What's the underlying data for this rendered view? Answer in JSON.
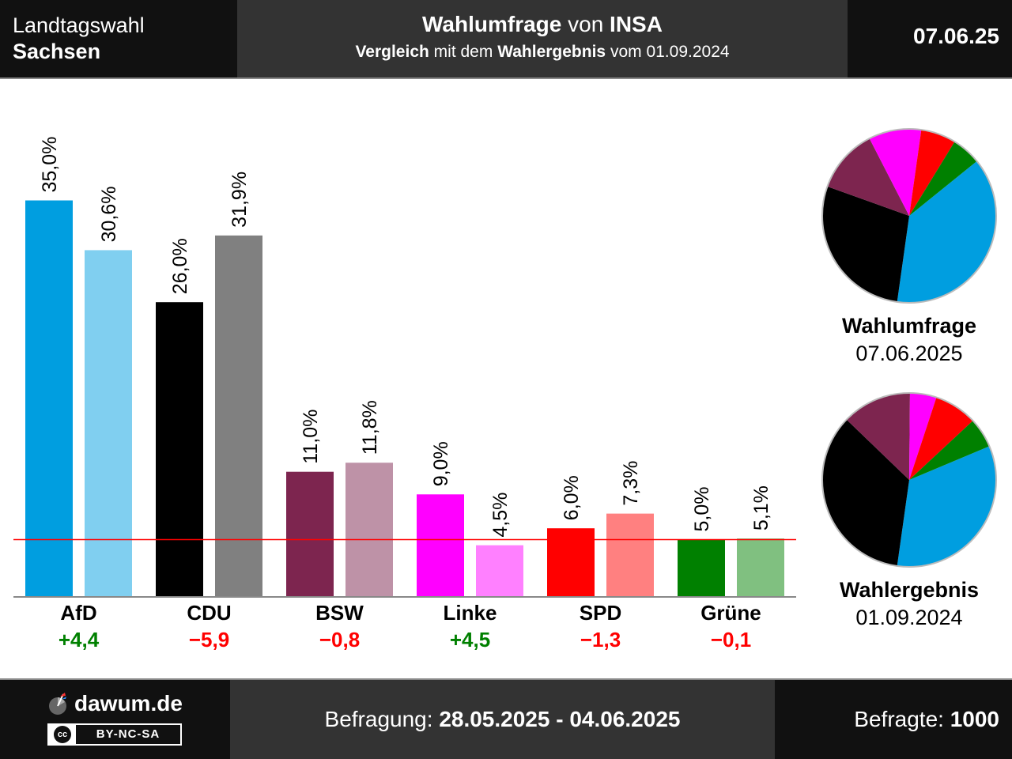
{
  "header": {
    "region_line1": "Landtagswahl",
    "region_line2": "Sachsen",
    "title_bold1": "Wahlumfrage",
    "title_mid": " von ",
    "title_bold2": "INSA",
    "subtitle_bold1": "Vergleich",
    "subtitle_mid": " mit dem ",
    "subtitle_bold2": "Wahlergebnis",
    "subtitle_end": " vom 01.09.2024",
    "date": "07.06.25"
  },
  "chart_data": {
    "type": "bar",
    "categories": [
      "AfD",
      "CDU",
      "BSW",
      "Linke",
      "SPD",
      "Grüne"
    ],
    "series": [
      {
        "values": [
          35.0,
          26.0,
          11.0,
          9.0,
          6.0,
          5.0
        ],
        "labels": [
          "35,0%",
          "26,0%",
          "11,0%",
          "9,0%",
          "6,0%",
          "5,0%"
        ],
        "colors": [
          "#009ee0",
          "#000000",
          "#7d254f",
          "#ff00ff",
          "#ff0000",
          "#008000"
        ]
      },
      {
        "values": [
          30.6,
          31.9,
          11.8,
          4.5,
          7.3,
          5.1
        ],
        "labels": [
          "30,6%",
          "31,9%",
          "11,8%",
          "4,5%",
          "7,3%",
          "5,1%"
        ],
        "colors": [
          "#80cff0",
          "#808080",
          "#be92a7",
          "#ff80ff",
          "#ff8080",
          "#80c080"
        ]
      }
    ],
    "changes": [
      "+4,4",
      "−5,9",
      "−0,8",
      "+4,5",
      "−1,3",
      "−0,1"
    ],
    "change_colors": [
      "#008000",
      "#ff0000",
      "#ff0000",
      "#008000",
      "#ff0000",
      "#ff0000"
    ],
    "threshold": 5,
    "threshold_color": "#ff0000",
    "ylim": [
      0,
      35
    ],
    "pies": [
      {
        "title": "Wahlumfrage",
        "date": "07.06.2025",
        "slices": [
          {
            "value": 35.0,
            "color": "#009ee0"
          },
          {
            "value": 26.0,
            "color": "#000000"
          },
          {
            "value": 11.0,
            "color": "#7d254f"
          },
          {
            "value": 9.0,
            "color": "#ff00ff"
          },
          {
            "value": 6.0,
            "color": "#ff0000"
          },
          {
            "value": 5.0,
            "color": "#008000"
          }
        ]
      },
      {
        "title": "Wahlergebnis",
        "date": "01.09.2024",
        "slices": [
          {
            "value": 30.6,
            "color": "#009ee0"
          },
          {
            "value": 31.9,
            "color": "#000000"
          },
          {
            "value": 11.8,
            "color": "#7d254f"
          },
          {
            "value": 4.5,
            "color": "#ff00ff"
          },
          {
            "value": 7.3,
            "color": "#ff0000"
          },
          {
            "value": 5.1,
            "color": "#008000"
          }
        ]
      }
    ]
  },
  "footer": {
    "site": "dawum.de",
    "license": "BY-NC-SA",
    "license_badge": "cc",
    "survey_label": "Befragung: ",
    "survey_period": "28.05.2025 - 04.06.2025",
    "respondents_label": "Befragte: ",
    "respondents": "1000"
  }
}
